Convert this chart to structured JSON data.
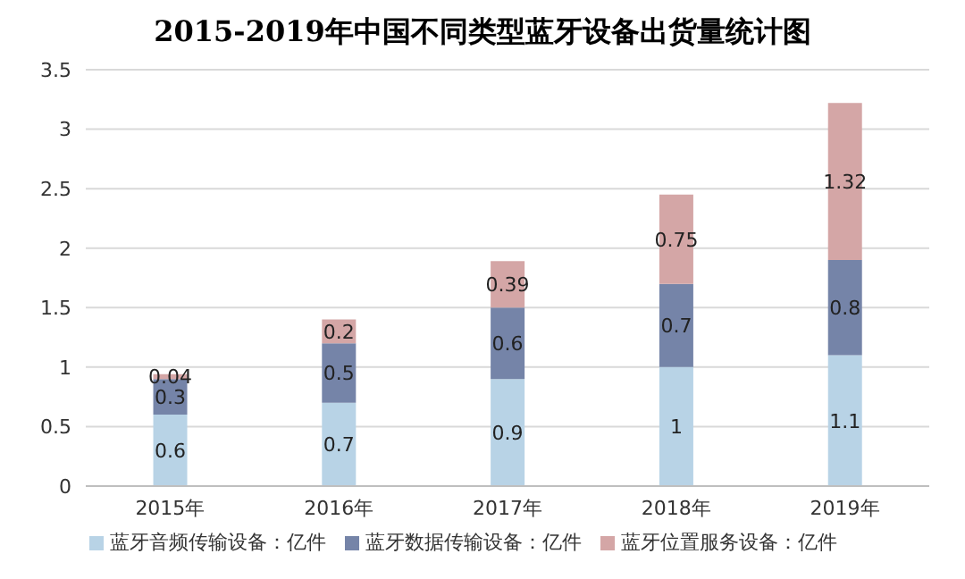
{
  "chart_data": {
    "type": "bar",
    "title": "2015-2019年中国不同类型蓝牙设备出货量统计图",
    "categories": [
      "2015年",
      "2016年",
      "2017年",
      "2018年",
      "2019年"
    ],
    "stacked": true,
    "data_labels": true,
    "grid": "y",
    "legend": "bottom",
    "ylim": [
      0,
      3.5
    ],
    "yticks": [
      0,
      0.5,
      1,
      1.5,
      2,
      2.5,
      3,
      3.5
    ],
    "series": [
      {
        "name": "蓝牙音频传输设备：亿件",
        "color": "#b8d3e6",
        "values": [
          0.6,
          0.7,
          0.9,
          1,
          1.1
        ]
      },
      {
        "name": "蓝牙数据传输设备：亿件",
        "color": "#7584a8",
        "values": [
          0.3,
          0.5,
          0.6,
          0.7,
          0.8
        ]
      },
      {
        "name": "蓝牙位置服务设备：亿件",
        "color": "#d4a6a6",
        "values": [
          0.04,
          0.2,
          0.39,
          0.75,
          1.32
        ]
      }
    ]
  }
}
